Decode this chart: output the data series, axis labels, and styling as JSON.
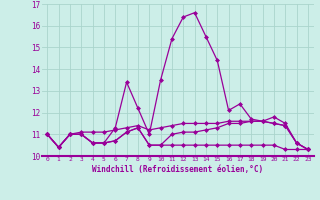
{
  "xlabel": "Windchill (Refroidissement éolien,°C)",
  "background_color": "#cceee8",
  "line_color": "#990099",
  "grid_color": "#aad4cc",
  "xlim": [
    -0.5,
    23.5
  ],
  "ylim": [
    10.0,
    17.0
  ],
  "xticks": [
    0,
    1,
    2,
    3,
    4,
    5,
    6,
    7,
    8,
    9,
    10,
    11,
    12,
    13,
    14,
    15,
    16,
    17,
    18,
    19,
    20,
    21,
    22,
    23
  ],
  "yticks": [
    10,
    11,
    12,
    13,
    14,
    15,
    16,
    17
  ],
  "series": [
    [
      11.0,
      10.4,
      11.0,
      11.0,
      10.6,
      10.6,
      10.7,
      11.1,
      11.3,
      10.5,
      10.5,
      10.5,
      10.5,
      10.5,
      10.5,
      10.5,
      10.5,
      10.5,
      10.5,
      10.5,
      10.5,
      10.3,
      10.3,
      10.3
    ],
    [
      11.0,
      10.4,
      11.0,
      11.0,
      10.6,
      10.6,
      11.3,
      13.4,
      12.2,
      11.0,
      13.5,
      15.4,
      16.4,
      16.6,
      15.5,
      14.4,
      12.1,
      12.4,
      11.7,
      11.6,
      11.8,
      11.5,
      10.6,
      10.3
    ],
    [
      11.0,
      10.4,
      11.0,
      11.1,
      11.1,
      11.1,
      11.2,
      11.3,
      11.4,
      11.2,
      11.3,
      11.4,
      11.5,
      11.5,
      11.5,
      11.5,
      11.6,
      11.6,
      11.6,
      11.6,
      11.5,
      11.4,
      10.6,
      10.3
    ],
    [
      11.0,
      10.4,
      11.0,
      11.0,
      10.6,
      10.6,
      10.7,
      11.1,
      11.3,
      10.5,
      10.5,
      11.0,
      11.1,
      11.1,
      11.2,
      11.3,
      11.5,
      11.5,
      11.6,
      11.6,
      11.5,
      11.4,
      10.6,
      10.3
    ]
  ]
}
